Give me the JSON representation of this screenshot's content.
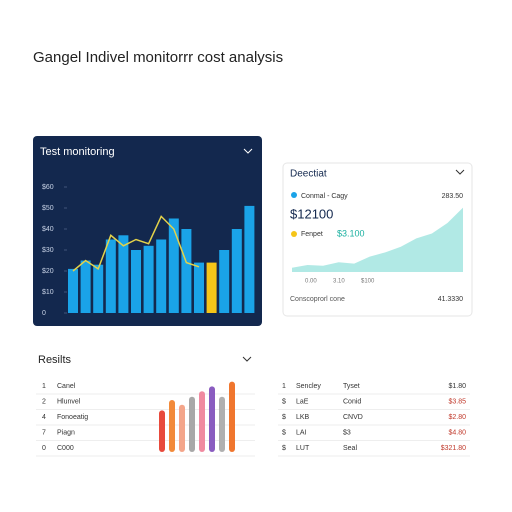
{
  "header": {
    "title": "Gangel Indivel monitorrr cost analysis"
  },
  "monitoring": {
    "title": "Test monitoring",
    "type": "bar",
    "ylim": [
      0,
      60
    ],
    "yticks": [
      {
        "value": 0,
        "label": "0"
      },
      {
        "value": 10,
        "label": "$10"
      },
      {
        "value": 20,
        "label": "$20"
      },
      {
        "value": 30,
        "label": "$30"
      },
      {
        "value": 40,
        "label": "$40"
      },
      {
        "value": 50,
        "label": "$50"
      },
      {
        "value": 60,
        "label": "$60"
      }
    ],
    "values": [
      21,
      25,
      23,
      35,
      37,
      30,
      32,
      35,
      45,
      40,
      24,
      24,
      30,
      40,
      51
    ],
    "colors": [
      "#1aa3e8",
      "#1aa3e8",
      "#1aa3e8",
      "#1aa3e8",
      "#1aa3e8",
      "#1aa3e8",
      "#1aa3e8",
      "#1aa3e8",
      "#1aa3e8",
      "#1aa3e8",
      "#1aa3e8",
      "#f5c518",
      "#1aa3e8",
      "#1aa3e8",
      "#1aa3e8"
    ],
    "line": [
      20,
      25,
      21,
      37,
      32,
      35,
      33,
      46,
      40,
      24,
      22
    ],
    "line_color": "#e3d24a"
  },
  "detail": {
    "title": "Deectiat",
    "row1": {
      "label": "Conmal - Cagy",
      "value": "283.50"
    },
    "amount": "$12100",
    "row2": {
      "label": "Fenpet",
      "value": "$3.100"
    },
    "area": {
      "type": "area",
      "ylim": [
        0,
        100
      ],
      "values": [
        6,
        10,
        9,
        14,
        12,
        22,
        28,
        36,
        48,
        55,
        70,
        92
      ],
      "color": "#7ddbd3"
    },
    "xlabels": [
      "0.00",
      "3.10",
      "$100"
    ],
    "footer": {
      "label": "Conscoprorl cone",
      "value": "41.3330"
    }
  },
  "results": {
    "title": "Resilts",
    "items": [
      [
        "1",
        "Canel"
      ],
      [
        "2",
        "Hlunvel"
      ],
      [
        "4",
        "Fonoeatig"
      ],
      [
        "7",
        "Piagn"
      ],
      [
        "0",
        "C000"
      ]
    ],
    "bars": {
      "type": "bar",
      "ylim": [
        0,
        100
      ],
      "values": [
        52,
        65,
        59,
        69,
        76,
        82,
        69,
        88
      ],
      "colors": [
        "#e84a3c",
        "#f28a3a",
        "#f4a58a",
        "#a8a8a8",
        "#f08aa0",
        "#8a5cc0",
        "#b0b0b0",
        "#f0762e"
      ]
    }
  },
  "table": {
    "rows": [
      [
        "1",
        "Sencley",
        "Tyset",
        "$1.80"
      ],
      [
        "$",
        "LaE",
        "Conid",
        "$3.85"
      ],
      [
        "$",
        "LKB",
        "CNVD",
        "$2.80"
      ],
      [
        "$",
        "LAI",
        "$3",
        "$4.80"
      ],
      [
        "$",
        "LUT",
        "Seal",
        "$321.80"
      ]
    ]
  }
}
